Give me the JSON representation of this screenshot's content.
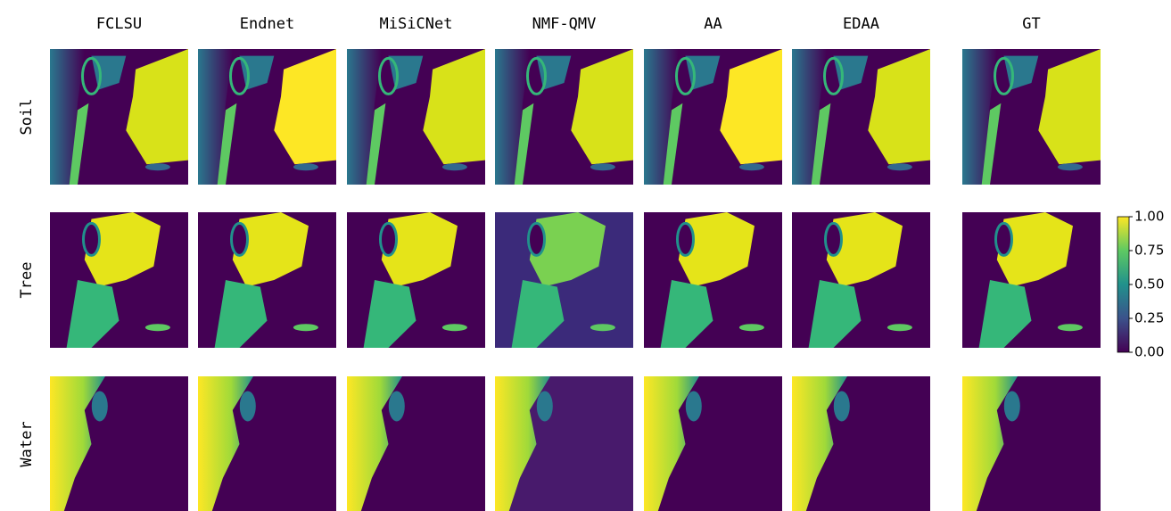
{
  "columns": [
    "FCLSU",
    "Endnet",
    "MiSiCNet",
    "NMF-QMV",
    "AA",
    "EDAA",
    "GT"
  ],
  "rows": [
    "Soil",
    "Tree",
    "Water"
  ],
  "colorbar": {
    "ticks": [
      {
        "value": 1,
        "label": "1.00"
      },
      {
        "value": 0.75,
        "label": "0.75"
      },
      {
        "value": 0.5,
        "label": "0.50"
      },
      {
        "value": 0.25,
        "label": "0.25"
      },
      {
        "value": 0,
        "label": "0.00"
      }
    ]
  }
}
